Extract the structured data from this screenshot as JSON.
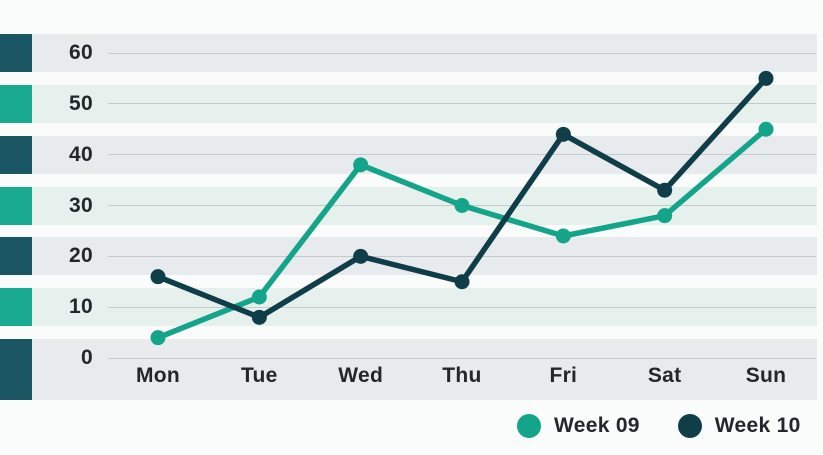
{
  "chart_data": {
    "type": "line",
    "title": "",
    "categories": [
      "Mon",
      "Tue",
      "Wed",
      "Thu",
      "Fri",
      "Sat",
      "Sun"
    ],
    "series": [
      {
        "name": "Week 09",
        "color": "#13A489",
        "values": [
          4,
          12,
          38,
          30,
          24,
          28,
          45
        ]
      },
      {
        "name": "Week 10",
        "color": "#0F3D48",
        "values": [
          16,
          8,
          20,
          15,
          44,
          33,
          55
        ]
      }
    ],
    "yticks": [
      60,
      50,
      40,
      30,
      20,
      10,
      0
    ],
    "ylim": [
      0,
      60
    ],
    "xlabel": "",
    "ylabel": "",
    "grid": true,
    "legend_position": "bottom-right",
    "colors": {
      "background": "#FAFBFB",
      "band_gray": "#E7EBEE",
      "band_mint": "#E6F1ED",
      "accent_square_dark": "#1A5563",
      "accent_square_green": "#1AAA92",
      "gridline": "#C4CACD",
      "tick_text": "#22272B"
    },
    "row_accent_pattern": [
      "dark",
      "green",
      "dark",
      "green",
      "dark",
      "green",
      "dark"
    ]
  },
  "legend": {
    "items": [
      {
        "label": "Week 09",
        "color": "#13A489",
        "marker": "circle-icon"
      },
      {
        "label": "Week 10",
        "color": "#0F3D48",
        "marker": "circle-icon"
      }
    ]
  }
}
